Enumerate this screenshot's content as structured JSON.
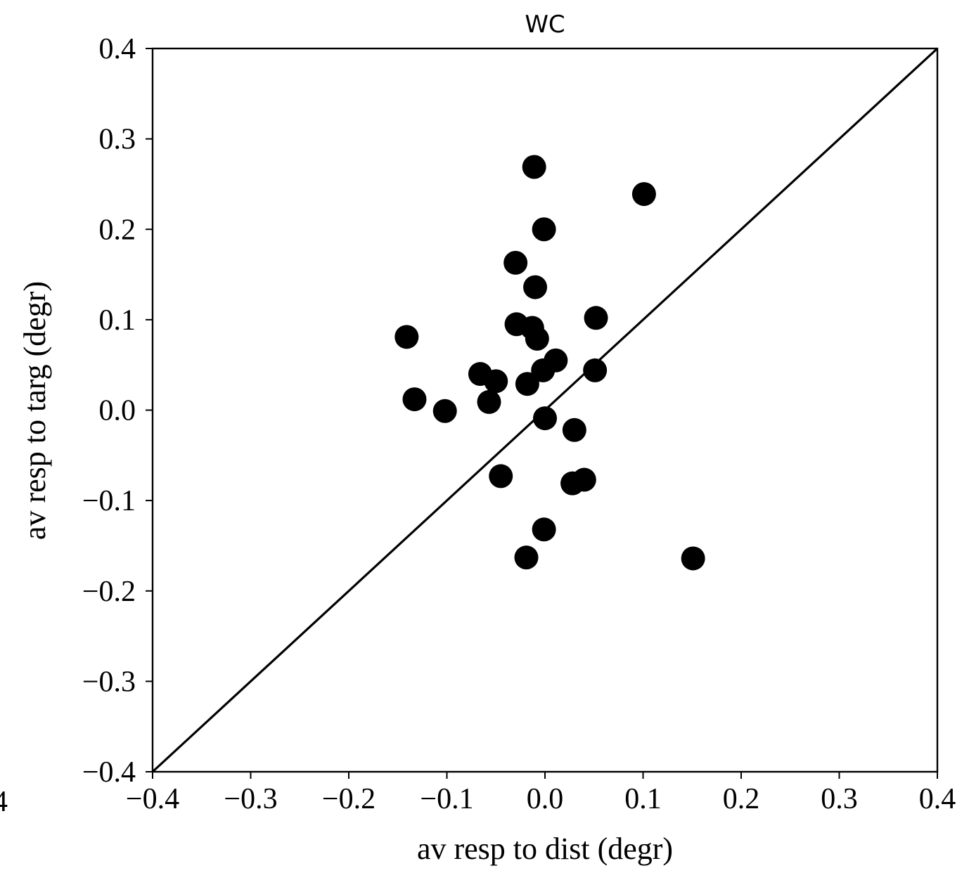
{
  "chart_data": {
    "type": "scatter",
    "title": "WC",
    "xlabel": "av resp to dist (degr)",
    "ylabel": "av resp to targ (degr)",
    "xlim": [
      -0.4,
      0.4
    ],
    "ylim": [
      -0.4,
      0.4
    ],
    "x_ticks": [
      -0.4,
      -0.3,
      -0.2,
      -0.1,
      0.0,
      0.1,
      0.2,
      0.3,
      0.4
    ],
    "y_ticks": [
      -0.4,
      -0.3,
      -0.2,
      -0.1,
      0.0,
      0.1,
      0.2,
      0.3,
      0.4
    ],
    "x_tick_labels": [
      "−0.4",
      "−0.3",
      "−0.2",
      "−0.1",
      "0.0",
      "0.1",
      "0.2",
      "0.3",
      "0.4"
    ],
    "y_tick_labels": [
      "−0.4",
      "−0.3",
      "−0.2",
      "−0.1",
      "0.0",
      "0.1",
      "0.2",
      "0.3",
      "0.4"
    ],
    "edge_glyph": "4",
    "grid": false,
    "reference_line": {
      "from": [
        -0.4,
        -0.4
      ],
      "to": [
        0.4,
        0.4
      ]
    },
    "marker_color": "#000000",
    "points": [
      {
        "x": -0.011,
        "y": 0.269
      },
      {
        "x": 0.101,
        "y": 0.239
      },
      {
        "x": -0.001,
        "y": 0.2
      },
      {
        "x": -0.03,
        "y": 0.163
      },
      {
        "x": -0.01,
        "y": 0.136
      },
      {
        "x": 0.052,
        "y": 0.102
      },
      {
        "x": -0.029,
        "y": 0.095
      },
      {
        "x": -0.013,
        "y": 0.091
      },
      {
        "x": -0.008,
        "y": 0.079
      },
      {
        "x": -0.141,
        "y": 0.081
      },
      {
        "x": 0.011,
        "y": 0.055
      },
      {
        "x": -0.002,
        "y": 0.044
      },
      {
        "x": 0.051,
        "y": 0.044
      },
      {
        "x": -0.066,
        "y": 0.04
      },
      {
        "x": -0.05,
        "y": 0.032
      },
      {
        "x": -0.018,
        "y": 0.029
      },
      {
        "x": -0.133,
        "y": 0.012
      },
      {
        "x": -0.057,
        "y": 0.009
      },
      {
        "x": -0.102,
        "y": -0.001
      },
      {
        "x": 0.0,
        "y": -0.009
      },
      {
        "x": 0.03,
        "y": -0.022
      },
      {
        "x": -0.045,
        "y": -0.073
      },
      {
        "x": 0.04,
        "y": -0.077
      },
      {
        "x": 0.028,
        "y": -0.081
      },
      {
        "x": -0.001,
        "y": -0.132
      },
      {
        "x": -0.019,
        "y": -0.163
      },
      {
        "x": 0.151,
        "y": -0.164
      }
    ]
  }
}
